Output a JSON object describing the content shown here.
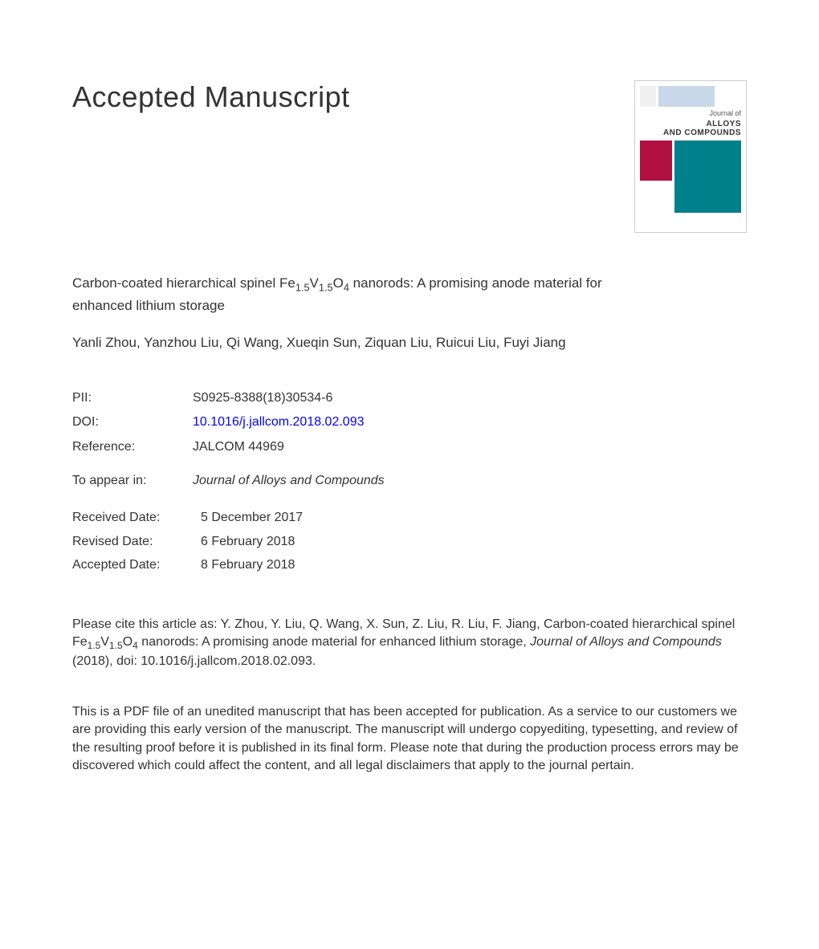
{
  "heading": "Accepted Manuscript",
  "cover": {
    "journal_prefix": "Journal of",
    "journal_line1": "ALLOYS",
    "journal_line2": "AND COMPOUNDS",
    "colors": {
      "magenta": "#b01040",
      "teal": "#00808a",
      "lightblue": "#c8d8e8",
      "border": "#cccccc"
    }
  },
  "title": {
    "prefix": "Carbon-coated hierarchical spinel Fe",
    "sub1": "1.5",
    "mid1": "V",
    "sub2": "1.5",
    "mid2": "O",
    "sub3": "4",
    "suffix": " nanorods: A promising anode material for enhanced lithium storage"
  },
  "authors": "Yanli Zhou, Yanzhou Liu, Qi Wang, Xueqin Sun, Ziquan Liu, Ruicui Liu, Fuyi Jiang",
  "meta": {
    "pii_label": "PII:",
    "pii_value": "S0925-8388(18)30534-6",
    "doi_label": "DOI:",
    "doi_value": "10.1016/j.jallcom.2018.02.093",
    "ref_label": "Reference:",
    "ref_value": "JALCOM 44969"
  },
  "appear": {
    "label": "To appear in:",
    "value": "Journal of Alloys and Compounds"
  },
  "dates": {
    "received_label": "Received Date:",
    "received_value": "5 December 2017",
    "revised_label": "Revised Date:",
    "revised_value": "6 February 2018",
    "accepted_label": "Accepted Date:",
    "accepted_value": "8 February 2018"
  },
  "citation": {
    "prefix": "Please cite this article as: Y. Zhou, Y. Liu, Q. Wang, X. Sun, Z. Liu, R. Liu, F. Jiang, Carbon-coated hierarchical spinel Fe",
    "sub1": "1.5",
    "mid1": "V",
    "sub2": "1.5",
    "mid2": "O",
    "sub3": "4",
    "mid3": " nanorods: A promising anode material for enhanced lithium storage, ",
    "journal": "Journal of Alloys and Compounds",
    "suffix": " (2018), doi: 10.1016/j.jallcom.2018.02.093."
  },
  "disclaimer": "This is a PDF file of an unedited manuscript that has been accepted for publication. As a service to our customers we are providing this early version of the manuscript. The manuscript will undergo copyediting, typesetting, and review of the resulting proof before it is published in its final form. Please note that during the production process errors may be discovered which could affect the content, and all legal disclaimers that apply to the journal pertain."
}
